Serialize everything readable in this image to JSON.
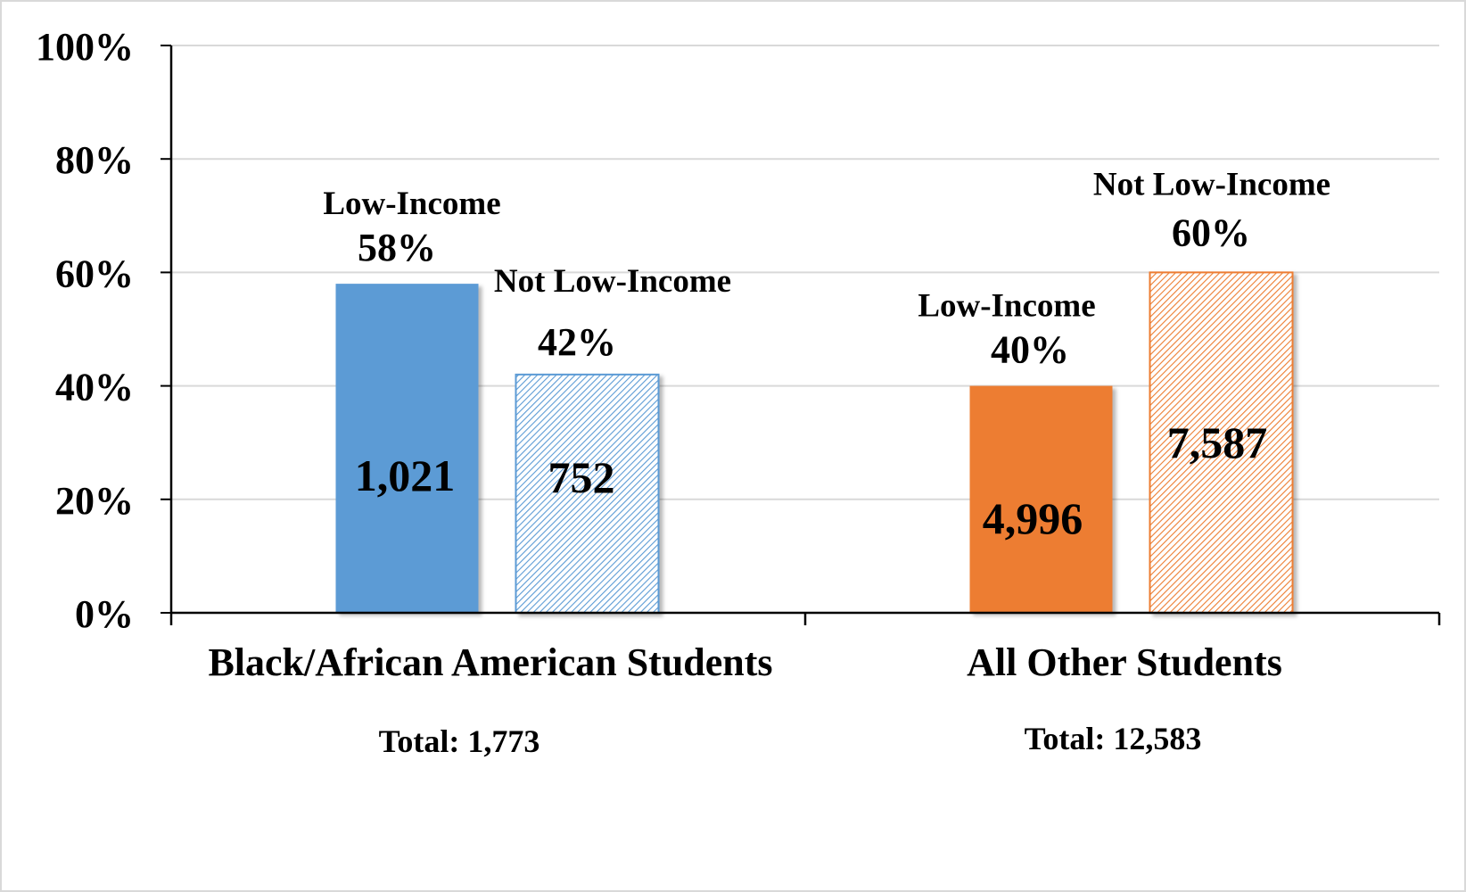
{
  "chart_data": {
    "type": "bar",
    "y_axis": {
      "min": 0,
      "max": 100,
      "step": 20,
      "tick_labels": [
        "0%",
        "20%",
        "40%",
        "60%",
        "80%",
        "100%"
      ]
    },
    "grid": true,
    "groups": [
      {
        "label": "Black/African American Students",
        "total_text": "Total:  1,773",
        "bars": [
          {
            "name": "Low-Income",
            "percent": 58,
            "percent_label": "58%",
            "count_label": "1,021",
            "color": "#5b9bd5",
            "pattern": "solid"
          },
          {
            "name": "Not Low-Income",
            "percent": 42,
            "percent_label": "42%",
            "count_label": "752",
            "color": "#5b9bd5",
            "pattern": "hatched"
          }
        ]
      },
      {
        "label": "All Other Students",
        "total_text": "Total:  12,583",
        "bars": [
          {
            "name": "Low-Income",
            "percent": 40,
            "percent_label": "40%",
            "count_label": "4,996",
            "color": "#ed7d31",
            "pattern": "solid"
          },
          {
            "name": "Not Low-Income",
            "percent": 60,
            "percent_label": "60%",
            "count_label": "7,587",
            "color": "#ed7d31",
            "pattern": "hatched"
          }
        ]
      }
    ]
  }
}
